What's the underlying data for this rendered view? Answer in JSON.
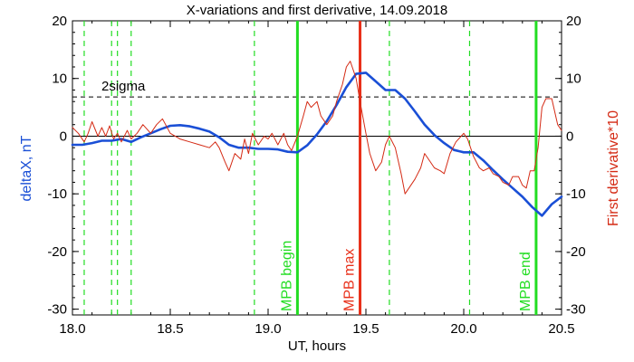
{
  "chart_data": {
    "type": "line",
    "title": "X-variations and first derivative, 14.09.2018",
    "xlabel": "UT, hours",
    "ylabel_left": "deltaX, nT",
    "ylabel_right": "First derivative*10",
    "xlim": [
      18.0,
      20.5
    ],
    "ylim": [
      -31,
      20
    ],
    "x_ticks": [
      18.0,
      18.5,
      19.0,
      19.5,
      20.0,
      20.5
    ],
    "x_tick_labels": [
      "18.0",
      "18.5",
      "19.0",
      "19.5",
      "20.0",
      "20.5"
    ],
    "y_ticks": [
      20,
      10,
      0,
      -10,
      -20,
      -30
    ],
    "y_tick_labels": [
      "20",
      "10",
      "0",
      "-10",
      "-20",
      "-30"
    ],
    "colors": {
      "deltax": "#1a4fd6",
      "derivative": "#d42a14",
      "mpb_boundary": "#22dd22",
      "mpb_max": "#e8301a",
      "axes": "#000000"
    },
    "series": [
      {
        "key": "deltax",
        "axis": "left",
        "x": [
          18.0,
          18.05,
          18.1,
          18.15,
          18.2,
          18.25,
          18.3,
          18.35,
          18.4,
          18.45,
          18.5,
          18.55,
          18.6,
          18.65,
          18.7,
          18.75,
          18.8,
          18.85,
          18.9,
          18.95,
          19.0,
          19.05,
          19.1,
          19.15,
          19.2,
          19.25,
          19.3,
          19.35,
          19.4,
          19.45,
          19.5,
          19.55,
          19.6,
          19.65,
          19.7,
          19.75,
          19.8,
          19.85,
          19.9,
          19.95,
          20.0,
          20.05,
          20.1,
          20.15,
          20.2,
          20.25,
          20.3,
          20.35,
          20.4,
          20.45,
          20.5
        ],
        "values": [
          -1.5,
          -1.5,
          -1.2,
          -0.8,
          -0.8,
          -0.5,
          -1.0,
          -0.2,
          0.5,
          1.2,
          1.8,
          1.9,
          1.7,
          1.3,
          0.8,
          -0.2,
          -1.5,
          -2.0,
          -2.0,
          -2.2,
          -2.2,
          -2.3,
          -2.7,
          -2.8,
          -1.6,
          0.3,
          2.6,
          5.4,
          8.5,
          10.8,
          11.0,
          9.5,
          8.0,
          8.0,
          6.5,
          4.3,
          2.0,
          0.2,
          -1.2,
          -2.4,
          -2.8,
          -2.8,
          -4.2,
          -5.9,
          -7.5,
          -9.0,
          -10.5,
          -12.3,
          -13.8,
          -11.8,
          -10.5
        ]
      },
      {
        "key": "derivative",
        "axis": "right",
        "x": [
          18.0,
          18.03,
          18.06,
          18.08,
          18.1,
          18.13,
          18.15,
          18.17,
          18.19,
          18.21,
          18.23,
          18.25,
          18.28,
          18.3,
          18.33,
          18.36,
          18.4,
          18.43,
          18.46,
          18.5,
          18.55,
          18.6,
          18.65,
          18.7,
          18.73,
          18.75,
          18.78,
          18.8,
          18.83,
          18.86,
          18.88,
          18.9,
          18.92,
          18.95,
          18.98,
          19.0,
          19.02,
          19.05,
          19.08,
          19.1,
          19.12,
          19.15,
          19.18,
          19.2,
          19.22,
          19.25,
          19.27,
          19.3,
          19.33,
          19.35,
          19.38,
          19.4,
          19.42,
          19.45,
          19.47,
          19.5,
          19.52,
          19.55,
          19.58,
          19.6,
          19.62,
          19.65,
          19.68,
          19.7,
          19.72,
          19.75,
          19.78,
          19.8,
          19.82,
          19.85,
          19.88,
          19.9,
          19.93,
          19.96,
          20.0,
          20.02,
          20.05,
          20.08,
          20.1,
          20.13,
          20.15,
          20.18,
          20.2,
          20.23,
          20.25,
          20.28,
          20.3,
          20.32,
          20.34,
          20.36,
          20.38,
          20.4,
          20.42,
          20.45,
          20.48,
          20.5
        ],
        "values": [
          1.5,
          0.5,
          -1.0,
          0.5,
          2.5,
          0.0,
          1.5,
          0.0,
          1.8,
          -0.5,
          0.5,
          -1.0,
          1.0,
          -0.5,
          0.5,
          2.0,
          0.5,
          2.0,
          3.0,
          0.5,
          -0.5,
          -1.0,
          -1.5,
          -2.0,
          -1.0,
          -2.0,
          -4.5,
          -6.0,
          -3.0,
          -4.0,
          -0.5,
          -3.0,
          0.5,
          -1.5,
          0.0,
          -0.5,
          0.5,
          -1.5,
          0.5,
          -1.5,
          -2.5,
          0.0,
          3.5,
          6.0,
          5.0,
          6.0,
          3.5,
          2.0,
          3.5,
          6.0,
          9.0,
          12.0,
          13.0,
          10.0,
          6.0,
          0.5,
          -3.0,
          -6.0,
          -4.5,
          -1.5,
          0.0,
          -2.0,
          -6.5,
          -10.0,
          -9.0,
          -7.5,
          -5.5,
          -3.0,
          -4.0,
          -5.5,
          -6.0,
          -6.5,
          -3.0,
          -1.0,
          0.5,
          -0.5,
          -3.5,
          -5.5,
          -6.0,
          -5.5,
          -6.5,
          -7.0,
          -8.0,
          -8.5,
          -7.0,
          -7.0,
          -8.5,
          -9.0,
          -6.0,
          -6.0,
          -2.0,
          5.0,
          6.5,
          6.5,
          2.0,
          1.0
        ]
      }
    ],
    "threshold": {
      "label": "2sigma",
      "value": 6.8
    },
    "zero_line": 0,
    "dashed_markers": [
      18.06,
      18.2,
      18.23,
      18.3,
      18.93,
      19.62,
      20.03
    ],
    "vertical_lines": [
      {
        "key": "mpb_begin",
        "label": "MPB begin",
        "x": 19.15
      },
      {
        "key": "mpb_max",
        "label": "MPB max",
        "x": 19.47
      },
      {
        "key": "mpb_end",
        "label": "MPB end",
        "x": 20.37
      }
    ]
  }
}
